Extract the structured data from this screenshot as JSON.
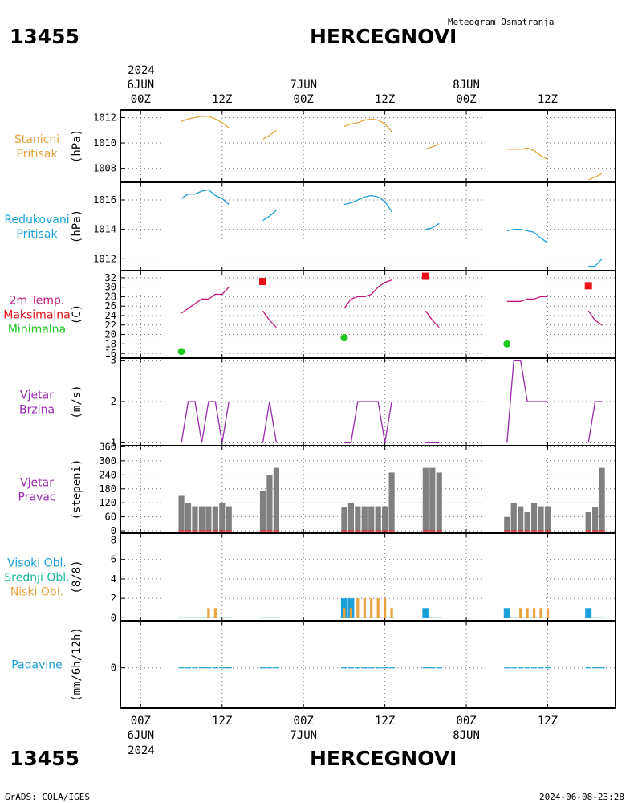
{
  "header": {
    "station_id": "13455",
    "station_name": "HERCEGNOVI",
    "product": "Meteogram Osmatranja"
  },
  "footer": {
    "station_id": "13455",
    "station_name": "HERCEGNOVI",
    "credit": "GrADS: COLA/IGES",
    "timestamp": "2024-06-08-23:28"
  },
  "time_axis": {
    "top_year": "2024",
    "bottom_year": "2024",
    "ticks": [
      {
        "hour": 0,
        "label": "00Z",
        "date": "6JUN"
      },
      {
        "hour": 12,
        "label": "12Z",
        "date": ""
      },
      {
        "hour": 24,
        "label": "00Z",
        "date": "7JUN"
      },
      {
        "hour": 36,
        "label": "12Z",
        "date": ""
      },
      {
        "hour": 48,
        "label": "00Z",
        "date": "8JUN"
      },
      {
        "hour": 60,
        "label": "12Z",
        "date": ""
      }
    ],
    "range_hours": [
      -3,
      70
    ]
  },
  "colors": {
    "pressure_station": "#e8a33d",
    "pressure_reduced": "#1aa0d8",
    "temp": "#c0187a",
    "tmax": "#e8101a",
    "tmin": "#1ec81e",
    "wind": "#9a2ab0",
    "wind_dir_bar": "#808080",
    "cloud_high": "#1aa0d8",
    "cloud_mid": "#18b89a",
    "cloud_low": "#e8a33d",
    "precip": "#1aa0d8"
  },
  "chart_data": [
    {
      "type": "line",
      "panel": "station_pressure",
      "side_label": [
        "Stanicni",
        "Pritisak"
      ],
      "ylabel": "(hPa)",
      "ylim": [
        1006.9,
        1012.6
      ],
      "yticks": [
        1008,
        1010,
        1012
      ],
      "grid": true,
      "series": [
        {
          "x": [
            6,
            7,
            8,
            9,
            10,
            11,
            12,
            13
          ],
          "y": [
            1011.7,
            1011.9,
            1012.0,
            1012.1,
            1012.1,
            1011.9,
            1011.6,
            1011.2
          ]
        },
        {
          "x": [
            18,
            19,
            20
          ],
          "y": [
            1010.3,
            1010.6,
            1011.0
          ]
        },
        {
          "x": [
            30,
            31,
            32,
            33,
            34,
            35,
            36,
            37
          ],
          "y": [
            1011.3,
            1011.5,
            1011.6,
            1011.8,
            1011.9,
            1011.8,
            1011.5,
            1010.9
          ]
        },
        {
          "x": [
            42,
            43,
            44
          ],
          "y": [
            1009.5,
            1009.7,
            1009.9
          ]
        },
        {
          "x": [
            54,
            55,
            56,
            57,
            58,
            59,
            60
          ],
          "y": [
            1009.5,
            1009.5,
            1009.5,
            1009.6,
            1009.4,
            1009.0,
            1008.7
          ]
        },
        {
          "x": [
            66,
            67,
            68
          ],
          "y": [
            1007.1,
            1007.3,
            1007.6
          ]
        }
      ]
    },
    {
      "type": "line",
      "panel": "reduced_pressure",
      "side_label": [
        "Redukovani",
        "Pritisak"
      ],
      "ylabel": "(hPa)",
      "ylim": [
        1011.2,
        1017.2
      ],
      "yticks": [
        1012,
        1014,
        1016
      ],
      "grid": true,
      "series": [
        {
          "x": [
            6,
            7,
            8,
            9,
            10,
            11,
            12,
            13
          ],
          "y": [
            1016.1,
            1016.4,
            1016.4,
            1016.6,
            1016.7,
            1016.3,
            1016.1,
            1015.7
          ]
        },
        {
          "x": [
            18,
            19,
            20
          ],
          "y": [
            1014.6,
            1014.9,
            1015.3
          ]
        },
        {
          "x": [
            30,
            31,
            32,
            33,
            34,
            35,
            36,
            37
          ],
          "y": [
            1015.7,
            1015.8,
            1016.0,
            1016.2,
            1016.3,
            1016.2,
            1015.9,
            1015.2
          ]
        },
        {
          "x": [
            42,
            43,
            44
          ],
          "y": [
            1014.0,
            1014.1,
            1014.4
          ]
        },
        {
          "x": [
            54,
            55,
            56,
            57,
            58,
            59,
            60
          ],
          "y": [
            1013.9,
            1014.0,
            1014.0,
            1013.9,
            1013.8,
            1013.4,
            1013.1
          ]
        },
        {
          "x": [
            66,
            67,
            68
          ],
          "y": [
            1011.5,
            1011.5,
            1012.0
          ]
        }
      ]
    },
    {
      "type": "line",
      "panel": "temperature",
      "side_label": [
        "2m Temp.",
        "Maksimalna",
        "Minimalna"
      ],
      "ylabel": "(C)",
      "ylim": [
        15,
        33.5
      ],
      "yticks": [
        16,
        18,
        20,
        22,
        24,
        26,
        28,
        30,
        32
      ],
      "grid": true,
      "series": [
        {
          "name": "2m Temp.",
          "x": [
            6,
            7,
            8,
            9,
            10,
            11,
            12,
            13
          ],
          "y": [
            24.5,
            25.5,
            26.5,
            27.5,
            27.5,
            28.5,
            28.5,
            30.0
          ]
        },
        {
          "name": "2m Temp.",
          "x": [
            18,
            19,
            20
          ],
          "y": [
            25.0,
            23.0,
            21.5
          ]
        },
        {
          "name": "2m Temp.",
          "x": [
            30,
            31,
            32,
            33,
            34,
            35,
            36,
            37
          ],
          "y": [
            25.5,
            27.5,
            28.0,
            28.0,
            28.5,
            30.0,
            31.0,
            31.5
          ]
        },
        {
          "name": "2m Temp.",
          "x": [
            42,
            43,
            44
          ],
          "y": [
            25.0,
            23.0,
            21.5
          ]
        },
        {
          "name": "2m Temp.",
          "x": [
            54,
            55,
            56,
            57,
            58,
            59,
            60
          ],
          "y": [
            27.0,
            27.0,
            27.0,
            27.5,
            27.5,
            28.0,
            28.0
          ]
        },
        {
          "name": "2m Temp.",
          "x": [
            66,
            67,
            68
          ],
          "y": [
            25.0,
            23.0,
            22.0
          ]
        }
      ],
      "max_points": {
        "name": "Maksimalna",
        "x": [
          18,
          42,
          66
        ],
        "y": [
          31.2,
          32.3,
          30.3
        ]
      },
      "min_points": {
        "name": "Minimalna",
        "x": [
          6,
          30,
          54
        ],
        "y": [
          16.4,
          19.3,
          18.0
        ]
      }
    },
    {
      "type": "line",
      "panel": "wind_speed",
      "side_label": [
        "Vjetar",
        "Brzina"
      ],
      "ylabel": "(m/s)",
      "ylim": [
        0.93,
        3.05
      ],
      "yticks": [
        1,
        2,
        3
      ],
      "grid": true,
      "series": [
        {
          "x": [
            6,
            7,
            8,
            9,
            10,
            11,
            12,
            13
          ],
          "y": [
            1,
            2,
            2,
            1,
            2,
            2,
            1,
            2
          ]
        },
        {
          "x": [
            18,
            19,
            20
          ],
          "y": [
            1,
            2,
            1
          ]
        },
        {
          "x": [
            30,
            31,
            32,
            33,
            34,
            35,
            36,
            37
          ],
          "y": [
            1,
            1,
            2,
            2,
            2,
            2,
            1,
            2
          ]
        },
        {
          "x": [
            42,
            43,
            44
          ],
          "y": [
            1,
            1,
            1
          ]
        },
        {
          "x": [
            54,
            55,
            56,
            57,
            58,
            59,
            60
          ],
          "y": [
            1,
            3,
            3,
            2,
            2,
            2,
            2
          ]
        },
        {
          "x": [
            66,
            67,
            68
          ],
          "y": [
            1,
            2,
            2
          ]
        }
      ]
    },
    {
      "type": "bar",
      "panel": "wind_direction",
      "side_label": [
        "Vjetar",
        "Pravac"
      ],
      "ylabel": "(stepeni)",
      "ylim": [
        -10,
        365
      ],
      "yticks": [
        0,
        60,
        120,
        180,
        240,
        300,
        360
      ],
      "grid": true,
      "x": [
        6,
        7,
        8,
        9,
        10,
        11,
        12,
        13,
        18,
        19,
        20,
        30,
        31,
        32,
        33,
        34,
        35,
        36,
        37,
        42,
        43,
        44,
        54,
        55,
        56,
        57,
        58,
        59,
        60,
        66,
        67,
        68
      ],
      "values": [
        150,
        120,
        105,
        105,
        105,
        105,
        120,
        105,
        170,
        240,
        270,
        100,
        120,
        105,
        105,
        105,
        105,
        105,
        250,
        270,
        270,
        250,
        60,
        120,
        105,
        80,
        120,
        105,
        105,
        80,
        100,
        270
      ]
    },
    {
      "type": "bar",
      "panel": "cloud_cover",
      "side_label": [
        "Visoki Obl.",
        "Srednji Obl.",
        "Niski Obl."
      ],
      "ylabel": "(8/8)",
      "ylim": [
        -0.3,
        8.7
      ],
      "yticks": [
        0,
        2,
        4,
        6,
        8
      ],
      "grid": true,
      "x": [
        6,
        7,
        8,
        9,
        10,
        11,
        12,
        13,
        18,
        19,
        20,
        30,
        31,
        32,
        33,
        34,
        35,
        36,
        37,
        42,
        43,
        44,
        54,
        55,
        56,
        57,
        58,
        59,
        60,
        66,
        67,
        68
      ],
      "series": [
        {
          "name": "Visoki Obl.",
          "values": [
            0,
            0,
            0,
            0,
            0,
            0,
            0,
            0,
            0,
            0,
            0,
            2,
            2,
            0,
            0,
            0,
            0,
            0,
            0,
            1,
            0,
            0,
            1,
            0,
            0,
            0,
            0,
            0,
            0,
            1,
            0,
            0
          ]
        },
        {
          "name": "Srednji Obl.",
          "values": [
            0,
            0,
            0,
            0,
            0,
            0,
            0,
            0,
            0,
            0,
            0,
            0,
            0,
            0,
            0,
            0,
            0,
            0,
            0,
            0,
            0,
            0,
            0,
            0,
            0,
            0,
            0,
            0,
            0,
            0,
            0,
            0
          ]
        },
        {
          "name": "Niski Obl.",
          "values": [
            0,
            0,
            0,
            0,
            1,
            1,
            0,
            0,
            0,
            0,
            0,
            1,
            1,
            2,
            2,
            2,
            2,
            2,
            1,
            0,
            0,
            0,
            0,
            0,
            1,
            1,
            1,
            1,
            1,
            0,
            0,
            0
          ]
        }
      ]
    },
    {
      "type": "bar",
      "panel": "precipitation",
      "side_label": [
        "Padavine"
      ],
      "ylabel": "(mm/6h/12h)",
      "ylim": [
        -3,
        3.5
      ],
      "yticks": [
        0
      ],
      "grid": true,
      "x": [
        6,
        7,
        8,
        9,
        10,
        11,
        12,
        13,
        18,
        19,
        20,
        30,
        31,
        32,
        33,
        34,
        35,
        36,
        37,
        42,
        43,
        44,
        54,
        55,
        56,
        57,
        58,
        59,
        60,
        66,
        67,
        68
      ],
      "values": [
        0,
        0,
        0,
        0,
        0,
        0,
        0,
        0,
        0,
        0,
        0,
        0,
        0,
        0,
        0,
        0,
        0,
        0,
        0,
        0,
        0,
        0,
        0,
        0,
        0,
        0,
        0,
        0,
        0,
        0,
        0,
        0
      ]
    }
  ]
}
